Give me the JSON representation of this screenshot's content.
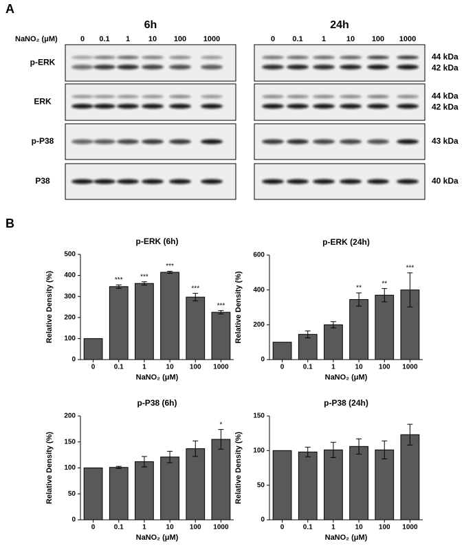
{
  "blots": {
    "panel_label": "A",
    "lane_axis_label": "NaNO₂ (μM)",
    "groups": [
      {
        "title": "6h",
        "lanes": [
          "0",
          "0.1",
          "1",
          "10",
          "100",
          "1000"
        ]
      },
      {
        "title": "24h",
        "lanes": [
          "0",
          "0.1",
          "1",
          "10",
          "100",
          "1000"
        ]
      }
    ],
    "rows": [
      {
        "label": "p-ERK",
        "kda": [
          "44 kDa",
          "42 kDa"
        ]
      },
      {
        "label": "ERK",
        "kda": [
          "44 kDa",
          "42 kDa"
        ]
      },
      {
        "label": "p-P38",
        "kda": [
          "43 kDa"
        ]
      },
      {
        "label": "P38",
        "kda": [
          "40 kDa"
        ]
      }
    ]
  },
  "panel_b_label": "B",
  "chart_data": [
    {
      "type": "bar",
      "title": "p-ERK (6h)",
      "xlabel": "NaNO₂ (μM)",
      "ylabel": "Relative Density (%)",
      "color": "#595959",
      "categories": [
        "0",
        "0.1",
        "1",
        "10",
        "100",
        "1000"
      ],
      "values": [
        100,
        347,
        362,
        415,
        297,
        225
      ],
      "errors": [
        0,
        8,
        8,
        5,
        18,
        8
      ],
      "annotations": [
        null,
        "***",
        "***",
        "***",
        "***",
        "***"
      ],
      "ylim": [
        0,
        500
      ],
      "yticks": [
        0,
        100,
        200,
        300,
        400,
        500
      ]
    },
    {
      "type": "bar",
      "title": "p-ERK (24h)",
      "xlabel": "NaNO₂ (μM)",
      "ylabel": "Relative Density (%)",
      "color": "#595959",
      "categories": [
        "0",
        "0.1",
        "1",
        "10",
        "100",
        "1000"
      ],
      "values": [
        100,
        145,
        200,
        345,
        370,
        400
      ],
      "errors": [
        0,
        20,
        18,
        38,
        38,
        98
      ],
      "annotations": [
        null,
        null,
        null,
        "**",
        "**",
        "***"
      ],
      "ylim": [
        0,
        600
      ],
      "yticks": [
        0,
        200,
        400,
        600
      ]
    },
    {
      "type": "bar",
      "title": "p-P38 (6h)",
      "xlabel": "NaNO₂ (μM)",
      "ylabel": "Relative Density (%)",
      "color": "#595959",
      "categories": [
        "0",
        "0.1",
        "1",
        "10",
        "100",
        "1000"
      ],
      "values": [
        100,
        101,
        112,
        121,
        137,
        155
      ],
      "errors": [
        0,
        2,
        10,
        11,
        15,
        19
      ],
      "annotations": [
        null,
        null,
        null,
        null,
        null,
        "*"
      ],
      "ylim": [
        0,
        200
      ],
      "yticks": [
        0,
        50,
        100,
        150,
        200
      ]
    },
    {
      "type": "bar",
      "title": "p-P38 (24h)",
      "xlabel": "NaNO₂ (μM)",
      "ylabel": "Relative Density (%)",
      "color": "#595959",
      "categories": [
        "0",
        "0.1",
        "1",
        "10",
        "100",
        "1000"
      ],
      "values": [
        100,
        98,
        101,
        106,
        101,
        123
      ],
      "errors": [
        0,
        7,
        11,
        11,
        13,
        15
      ],
      "annotations": [
        null,
        null,
        null,
        null,
        null,
        null
      ],
      "ylim": [
        0,
        150
      ],
      "yticks": [
        0,
        50,
        100,
        150
      ]
    }
  ]
}
